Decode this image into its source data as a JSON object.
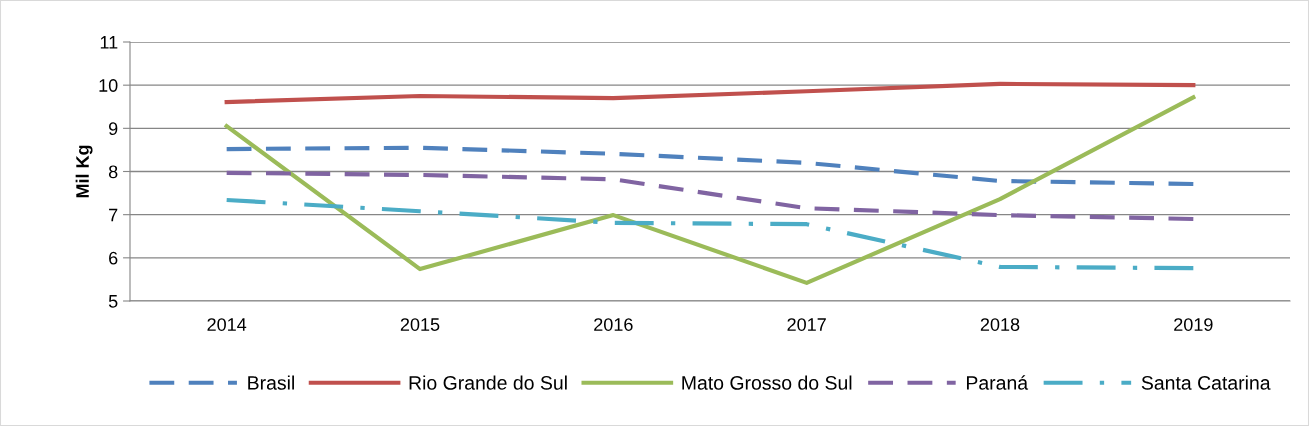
{
  "chart_data": {
    "type": "line",
    "ylabel": "Mil Kg",
    "categories": [
      "2014",
      "2015",
      "2016",
      "2017",
      "2018",
      "2019"
    ],
    "series": [
      {
        "name": "Brasil",
        "color": "#4f81bd",
        "line_style": "dashed",
        "values": [
          8.52,
          8.55,
          8.41,
          8.2,
          7.78,
          7.71
        ]
      },
      {
        "name": "Rio Grande do Sul",
        "color": "#c0504d",
        "line_style": "solid",
        "values": [
          9.61,
          9.75,
          9.7,
          9.86,
          10.03,
          10.0
        ]
      },
      {
        "name": "Mato Grosso do Sul",
        "color": "#9bbb59",
        "line_style": "solid",
        "values": [
          9.05,
          5.74,
          6.99,
          5.42,
          7.36,
          9.72
        ]
      },
      {
        "name": "Paraná",
        "color": "#8064a2",
        "line_style": "dashed",
        "values": [
          7.97,
          7.92,
          7.82,
          7.15,
          6.99,
          6.9
        ]
      },
      {
        "name": "Santa Catarina",
        "color": "#4bacc6",
        "line_style": "dashdot",
        "values": [
          7.34,
          7.08,
          6.81,
          6.78,
          5.79,
          5.76
        ]
      }
    ],
    "ylim": [
      5,
      11
    ],
    "yticks": [
      5,
      6,
      7,
      8,
      9,
      10,
      11
    ],
    "grid": "y",
    "legend": "bottom",
    "marker": "none"
  }
}
